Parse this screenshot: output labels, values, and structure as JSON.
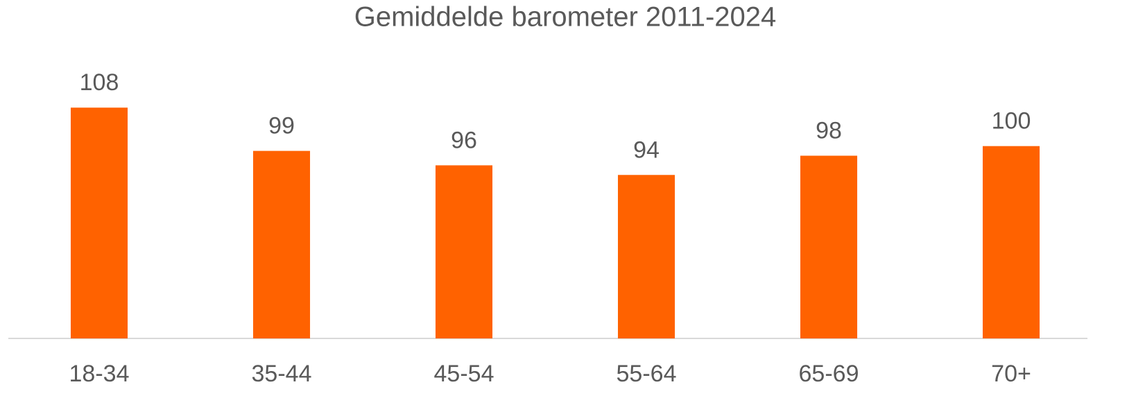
{
  "chart_data": {
    "type": "bar",
    "title": "Gemiddelde barometer 2011-2024",
    "categories": [
      "18-34",
      "35-44",
      "45-54",
      "55-64",
      "65-69",
      "70+"
    ],
    "values": [
      108,
      99,
      96,
      94,
      98,
      100
    ],
    "color": "#ff6200",
    "ylim": [
      60,
      120
    ]
  }
}
